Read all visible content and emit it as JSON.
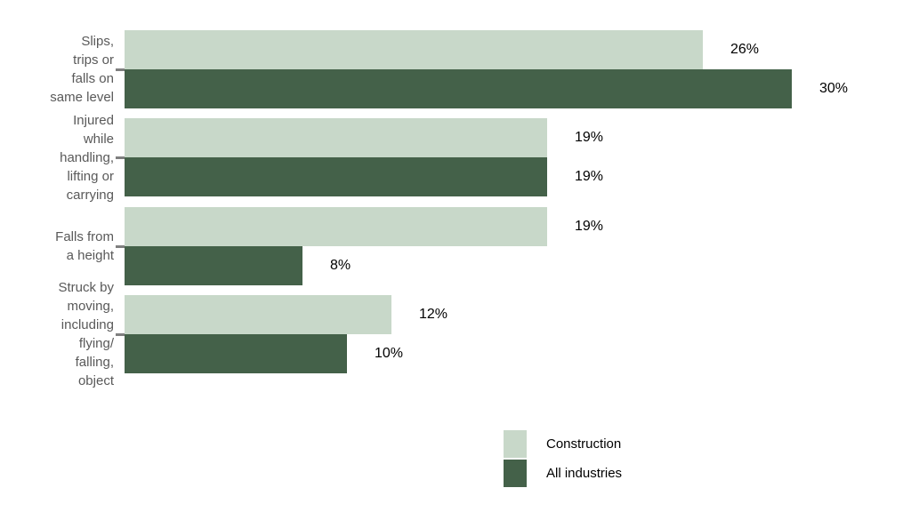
{
  "chart_data": {
    "type": "bar",
    "orientation": "horizontal",
    "title": "",
    "xlabel": "",
    "ylabel": "",
    "unit": "%",
    "xlim": [
      0,
      33
    ],
    "grid": false,
    "categories": [
      "Slips, trips or falls on same level",
      "Injured while handling, lifting or carrying",
      "Falls from a height",
      "Struck by moving, including flying/falling, object"
    ],
    "category_label_lines": [
      [
        "Slips,",
        "trips or",
        "falls on",
        "same level"
      ],
      [
        "Injured",
        "while",
        "handling,",
        "lifting or",
        "carrying"
      ],
      [
        "Falls from",
        "a height"
      ],
      [
        "Struck by",
        "moving,",
        "including",
        "flying/",
        "falling,",
        "object"
      ]
    ],
    "series": [
      {
        "name": "Construction",
        "color": "#c8d8c9",
        "values": [
          26,
          19,
          19,
          12
        ],
        "data_labels": [
          "26%",
          "19%",
          "19%",
          "12%"
        ]
      },
      {
        "name": "All industries",
        "color": "#446149",
        "values": [
          30,
          19,
          8,
          10
        ],
        "data_labels": [
          "30%",
          "19%",
          "8%",
          "10%"
        ]
      }
    ],
    "legend": {
      "position": "bottom-right",
      "entries": [
        "Construction",
        "All industries"
      ]
    }
  },
  "colors": {
    "background": "#ffffff",
    "category_label": "#595959",
    "value_label": "#000000",
    "tick": "#7f7f7f"
  }
}
